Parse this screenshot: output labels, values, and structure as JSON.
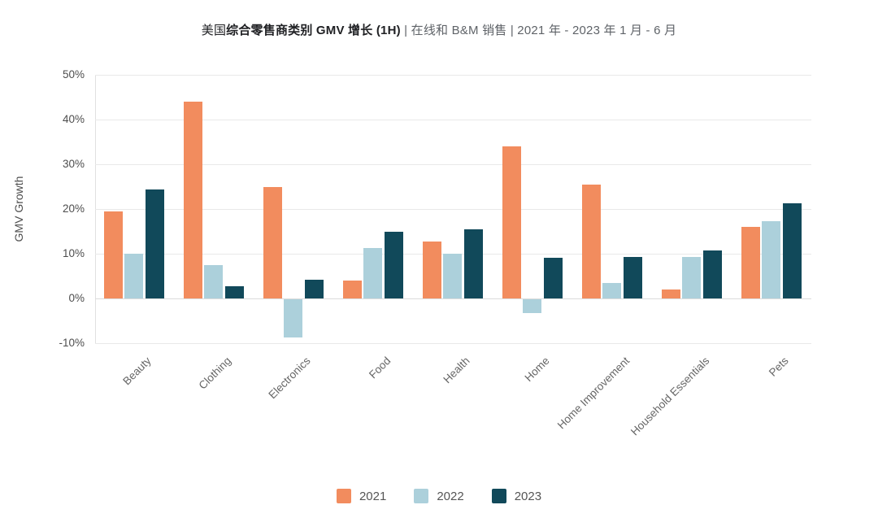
{
  "title": {
    "prefix": "美国",
    "bold": "综合零售商类别 GMV 增长 (1H)",
    "suffix": " | 在线和 B&M 销售 | 2021 年 - 2023 年 1 月 - 6 月"
  },
  "chart_data": {
    "type": "bar",
    "title": "美国综合零售商类别 GMV 增长 (1H) | 在线和 B&M 销售 | 2021 年 - 2023 年 1 月 - 6 月",
    "xlabel": "",
    "ylabel": "GMV Growth",
    "ylim": [
      -10,
      50
    ],
    "ytick_step": 10,
    "ytick_suffix": "%",
    "grid": true,
    "legend_position": "bottom",
    "categories": [
      "Beauty",
      "Clothing",
      "Electronics",
      "Food",
      "Health",
      "Home",
      "Home Improvement",
      "Household Essentials",
      "Pets"
    ],
    "series": [
      {
        "name": "2021",
        "color": "#F28C5E",
        "values": [
          19.5,
          44,
          25,
          4,
          12.7,
          34,
          25.5,
          2,
          16
        ]
      },
      {
        "name": "2022",
        "color": "#ACD0DB",
        "values": [
          10,
          7.5,
          -8.5,
          11.3,
          10,
          -3,
          3.5,
          9.3,
          17.3
        ]
      },
      {
        "name": "2023",
        "color": "#11495A",
        "values": [
          24.3,
          2.8,
          4.2,
          15,
          15.5,
          9.1,
          9.2,
          10.8,
          21.3
        ]
      }
    ]
  },
  "colors": {
    "gridline": "#e9e9e9",
    "zero_line": "#dcdcdc",
    "axis_text": "#4d4d4d",
    "category_text": "#666666",
    "legend_text": "#555555"
  }
}
